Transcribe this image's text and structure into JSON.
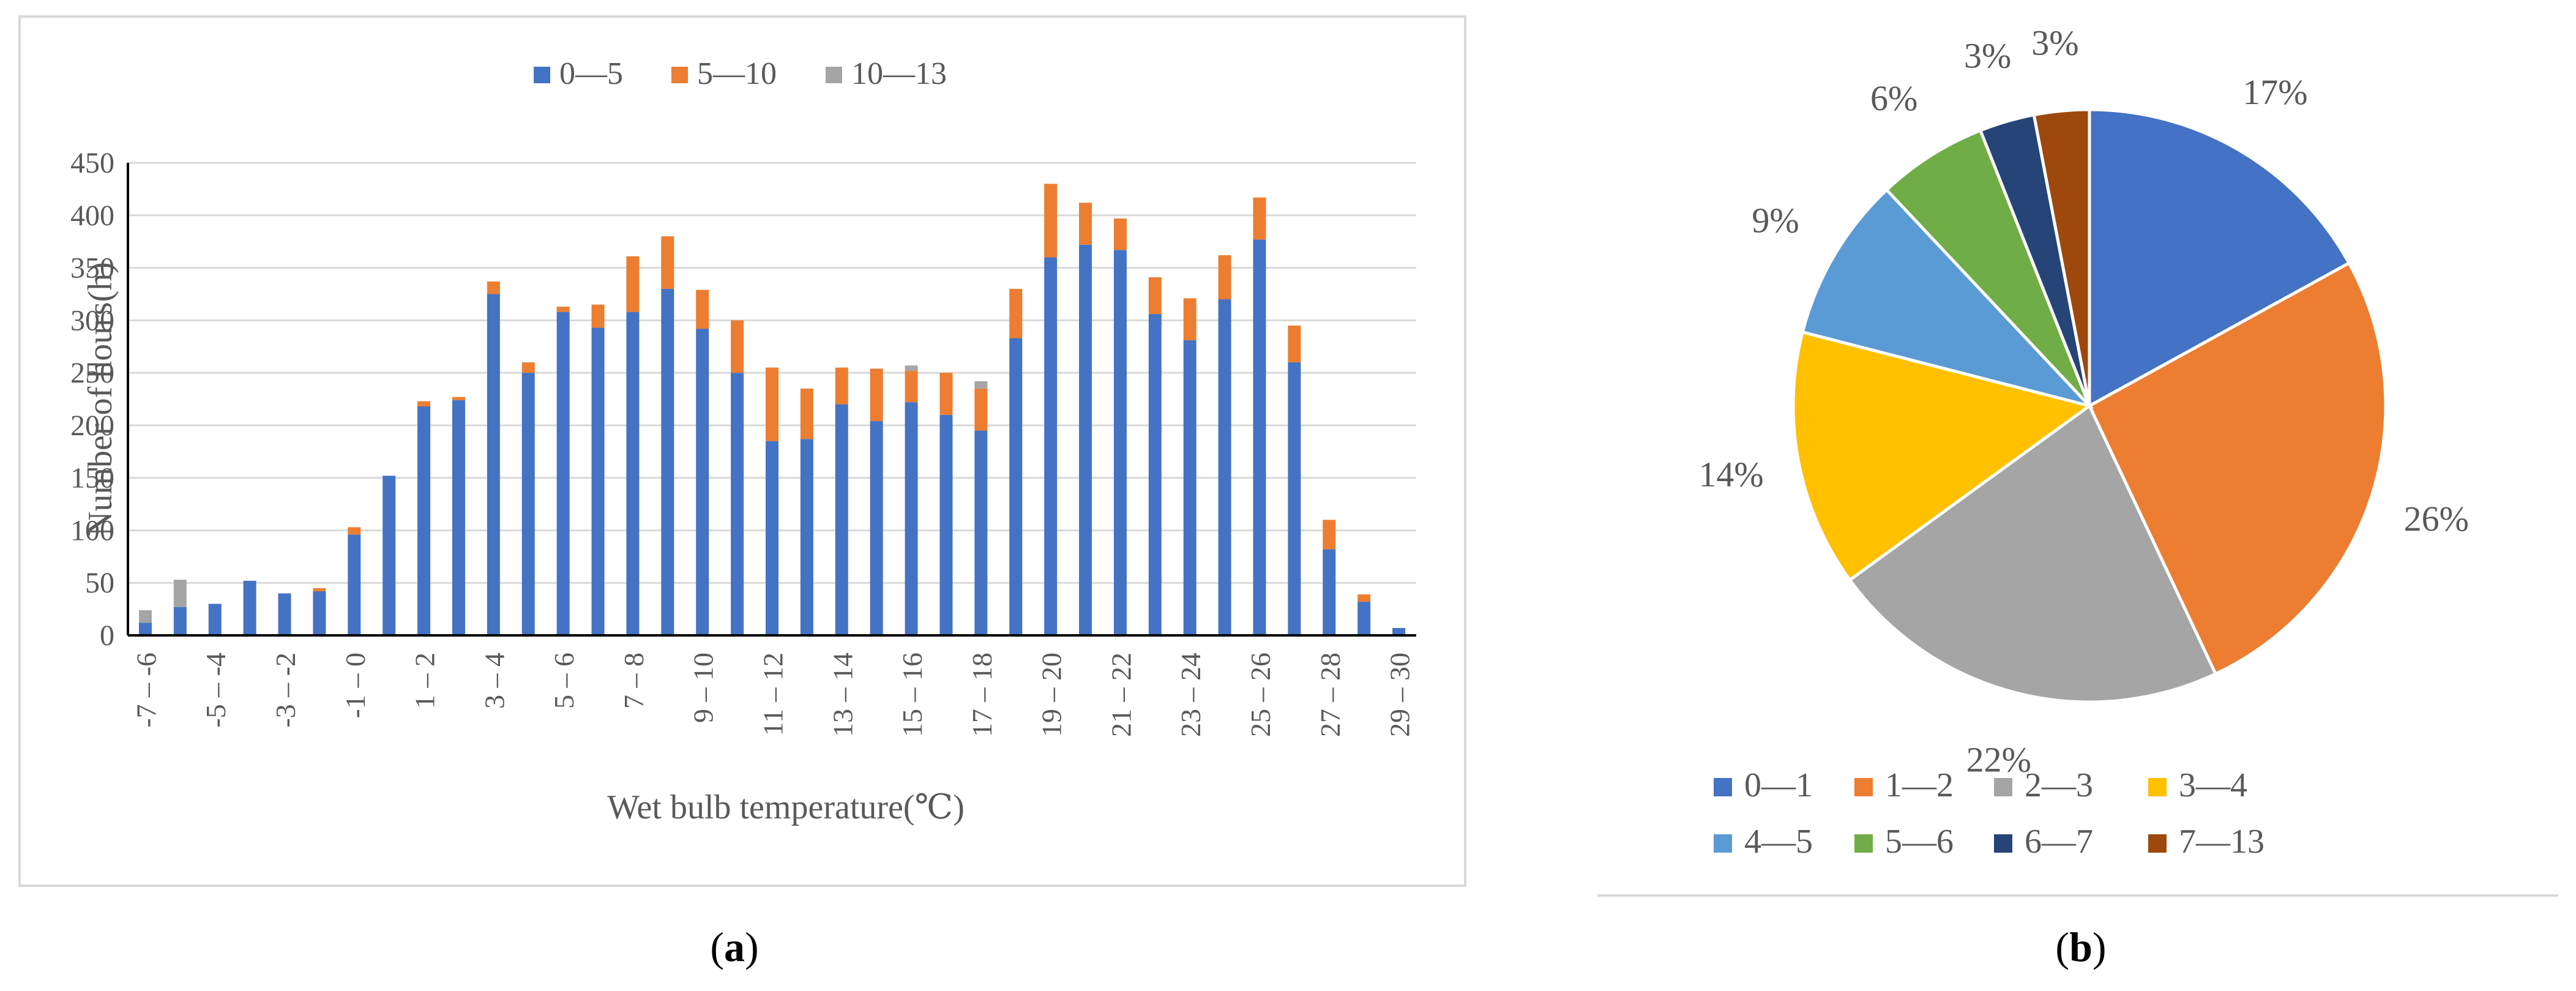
{
  "chart_data": [
    {
      "type": "bar",
      "stacked": true,
      "xlabel": "Wet bulb temperature(℃)",
      "ylabel": "Number of hours(h)",
      "ylim": [
        0,
        450
      ],
      "yticks": [
        0,
        50,
        100,
        150,
        200,
        250,
        300,
        350,
        400,
        450
      ],
      "grid": true,
      "legend_position": "top-center",
      "tick_categories": [
        "-7 – -6",
        "-5 – -4",
        "-3 – -2",
        "-1 – 0",
        "1 – 2",
        "3 – 4",
        "5 – 6",
        "7 – 8",
        "9 – 10",
        "11 – 12",
        "13 – 14",
        "15 – 16",
        "17 – 18",
        "19 – 20",
        "21 – 22",
        "23 – 24",
        "25 – 26",
        "27 – 28",
        "29 – 30"
      ],
      "series": [
        {
          "name": "0—5",
          "color": "#4472C4",
          "values": [
            12,
            27,
            30,
            52,
            40,
            42,
            96,
            152,
            218,
            224,
            325,
            250,
            308,
            293,
            308,
            330,
            292,
            250,
            185,
            187,
            220,
            204,
            222,
            210,
            195,
            283,
            360,
            372,
            367,
            306,
            281,
            320,
            377,
            260,
            82,
            32,
            7
          ]
        },
        {
          "name": "5—10",
          "color": "#ED7D31",
          "values": [
            0,
            0,
            0,
            0,
            0,
            3,
            7,
            0,
            5,
            3,
            12,
            10,
            5,
            22,
            53,
            50,
            37,
            50,
            70,
            48,
            35,
            50,
            30,
            40,
            40,
            47,
            70,
            40,
            30,
            35,
            40,
            42,
            40,
            35,
            28,
            7,
            0
          ]
        },
        {
          "name": "10—13",
          "color": "#A5A5A5",
          "values": [
            12,
            26,
            0,
            0,
            0,
            0,
            0,
            0,
            0,
            0,
            0,
            0,
            0,
            0,
            0,
            0,
            0,
            0,
            0,
            0,
            0,
            0,
            5,
            0,
            7,
            0,
            0,
            0,
            0,
            0,
            0,
            0,
            0,
            0,
            0,
            0,
            0
          ]
        }
      ]
    },
    {
      "type": "pie",
      "slices": [
        {
          "label": "0—1",
          "value": 17,
          "text": "17%",
          "color": "#4472C4"
        },
        {
          "label": "1—2",
          "value": 26,
          "text": "26%",
          "color": "#ED7D31"
        },
        {
          "label": "2—3",
          "value": 22,
          "text": "22%",
          "color": "#A5A5A5"
        },
        {
          "label": "3—4",
          "value": 14,
          "text": "14%",
          "color": "#FFC000"
        },
        {
          "label": "4—5",
          "value": 9,
          "text": "9%",
          "color": "#5B9BD5"
        },
        {
          "label": "5—6",
          "value": 6,
          "text": "6%",
          "color": "#70AD47"
        },
        {
          "label": "6—7",
          "value": 3,
          "text": "3%",
          "color": "#264478"
        },
        {
          "label": "7—13",
          "value": 3,
          "text": "3%",
          "color": "#9E480E"
        }
      ],
      "legend_position": "bottom"
    }
  ],
  "labels": {
    "panel_a": "a",
    "panel_b": "b"
  }
}
